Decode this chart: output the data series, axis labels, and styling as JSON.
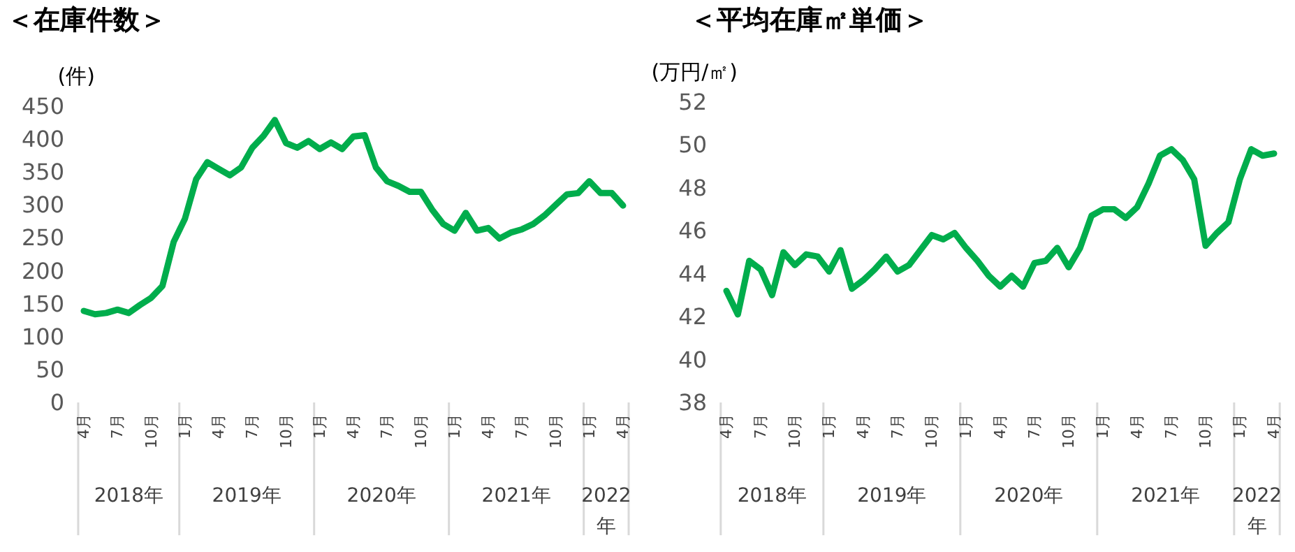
{
  "chart_data": [
    {
      "type": "line",
      "title": "＜在庫件数＞",
      "ylabel": "(件)",
      "color": "#00ad4c",
      "marker": "none",
      "grid": false,
      "xlim": [
        "2018-04",
        "2022-04"
      ],
      "xticks": [
        {
          "value": "2018-04",
          "label": "4月"
        },
        {
          "value": "2018-07",
          "label": "7月"
        },
        {
          "value": "2018-10",
          "label": "10月"
        },
        {
          "value": "2019-01",
          "label": "1月"
        },
        {
          "value": "2019-04",
          "label": "4月"
        },
        {
          "value": "2019-07",
          "label": "7月"
        },
        {
          "value": "2019-10",
          "label": "10月"
        },
        {
          "value": "2020-01",
          "label": "1月"
        },
        {
          "value": "2020-04",
          "label": "4月"
        },
        {
          "value": "2020-07",
          "label": "7月"
        },
        {
          "value": "2020-10",
          "label": "10月"
        },
        {
          "value": "2021-01",
          "label": "1月"
        },
        {
          "value": "2021-04",
          "label": "4月"
        },
        {
          "value": "2021-07",
          "label": "7月"
        },
        {
          "value": "2021-10",
          "label": "10月"
        },
        {
          "value": "2022-01",
          "label": "1月"
        },
        {
          "value": "2022-04",
          "label": "4月"
        }
      ],
      "x": [
        "2018-04",
        "2018-05",
        "2018-06",
        "2018-07",
        "2018-08",
        "2018-09",
        "2018-10",
        "2018-11",
        "2018-12",
        "2019-01",
        "2019-02",
        "2019-03",
        "2019-04",
        "2019-05",
        "2019-06",
        "2019-07",
        "2019-08",
        "2019-09",
        "2019-10",
        "2019-11",
        "2019-12",
        "2020-01",
        "2020-02",
        "2020-03",
        "2020-04",
        "2020-05",
        "2020-06",
        "2020-07",
        "2020-08",
        "2020-09",
        "2020-10",
        "2020-11",
        "2020-12",
        "2021-01",
        "2021-02",
        "2021-03",
        "2021-04",
        "2021-05",
        "2021-06",
        "2021-07",
        "2021-08",
        "2021-09",
        "2021-10",
        "2021-11",
        "2021-12",
        "2022-01",
        "2022-02",
        "2022-03",
        "2022-04"
      ],
      "values": [
        139,
        134,
        136,
        141,
        136,
        148,
        159,
        177,
        244,
        279,
        339,
        365,
        355,
        345,
        357,
        387,
        405,
        429,
        394,
        387,
        397,
        385,
        395,
        385,
        404,
        406,
        357,
        336,
        329,
        320,
        320,
        293,
        271,
        261,
        288,
        261,
        265,
        249,
        258,
        263,
        271,
        284,
        300,
        316,
        318,
        336,
        318,
        318,
        299
      ],
      "ylim": [
        0,
        450
      ],
      "yticks": [
        0,
        50,
        100,
        150,
        200,
        250,
        300,
        350,
        400,
        450
      ],
      "annotations": [
        "2018年",
        "2019年",
        "2020年",
        "2021年",
        "2022年"
      ]
    },
    {
      "type": "line",
      "title": "＜平均在庫㎡単価＞",
      "ylabel": "(万円/㎡)",
      "color": "#00ad4c",
      "marker": "none",
      "grid": false,
      "xlim": [
        "2018-04",
        "2022-04"
      ],
      "xticks": [
        {
          "value": "2018-04",
          "label": "4月"
        },
        {
          "value": "2018-07",
          "label": "7月"
        },
        {
          "value": "2018-10",
          "label": "10月"
        },
        {
          "value": "2019-01",
          "label": "1月"
        },
        {
          "value": "2019-04",
          "label": "4月"
        },
        {
          "value": "2019-07",
          "label": "7月"
        },
        {
          "value": "2019-10",
          "label": "10月"
        },
        {
          "value": "2020-01",
          "label": "1月"
        },
        {
          "value": "2020-04",
          "label": "4月"
        },
        {
          "value": "2020-07",
          "label": "7月"
        },
        {
          "value": "2020-10",
          "label": "10月"
        },
        {
          "value": "2021-01",
          "label": "1月"
        },
        {
          "value": "2021-04",
          "label": "4月"
        },
        {
          "value": "2021-07",
          "label": "7月"
        },
        {
          "value": "2021-10",
          "label": "10月"
        },
        {
          "value": "2022-01",
          "label": "1月"
        },
        {
          "value": "2022-04",
          "label": "4月"
        }
      ],
      "x": [
        "2018-04",
        "2018-05",
        "2018-06",
        "2018-07",
        "2018-08",
        "2018-09",
        "2018-10",
        "2018-11",
        "2018-12",
        "2019-01",
        "2019-02",
        "2019-03",
        "2019-04",
        "2019-05",
        "2019-06",
        "2019-07",
        "2019-08",
        "2019-09",
        "2019-10",
        "2019-11",
        "2019-12",
        "2020-01",
        "2020-02",
        "2020-03",
        "2020-04",
        "2020-05",
        "2020-06",
        "2020-07",
        "2020-08",
        "2020-09",
        "2020-10",
        "2020-11",
        "2020-12",
        "2021-01",
        "2021-02",
        "2021-03",
        "2021-04",
        "2021-05",
        "2021-06",
        "2021-07",
        "2021-08",
        "2021-09",
        "2021-10",
        "2021-11",
        "2021-12",
        "2022-01",
        "2022-02",
        "2022-03",
        "2022-04"
      ],
      "values": [
        43.2,
        42.1,
        44.6,
        44.2,
        43.0,
        45.0,
        44.4,
        44.9,
        44.8,
        44.1,
        45.1,
        43.3,
        43.7,
        44.2,
        44.8,
        44.1,
        44.4,
        45.1,
        45.8,
        45.6,
        45.9,
        45.2,
        44.6,
        43.9,
        43.4,
        43.9,
        43.4,
        44.5,
        44.6,
        45.2,
        44.3,
        45.2,
        46.7,
        47.0,
        47.0,
        46.6,
        47.1,
        48.2,
        49.5,
        49.8,
        49.3,
        48.4,
        45.3,
        45.9,
        46.4,
        48.4,
        49.8,
        49.5,
        49.6
      ],
      "ylim": [
        38,
        52
      ],
      "yticks": [
        38,
        40,
        42,
        44,
        46,
        48,
        50,
        52
      ],
      "annotations": [
        "2018年",
        "2019年",
        "2020年",
        "2021年",
        "2022年"
      ]
    }
  ]
}
